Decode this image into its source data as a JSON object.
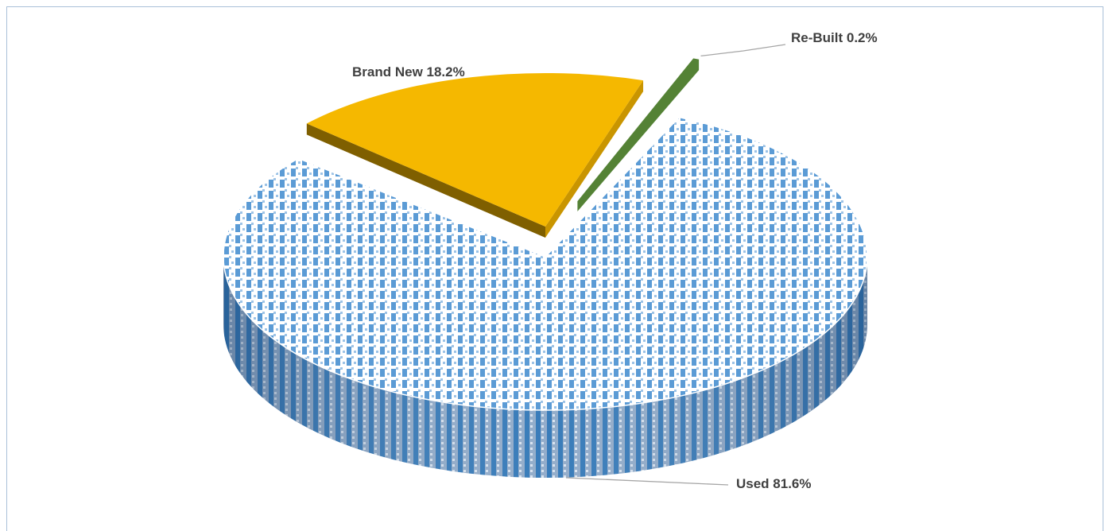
{
  "chart_data": {
    "type": "pie",
    "three_d": true,
    "slices": [
      {
        "label": "Used",
        "value": 81.6,
        "display": "Used 81.6%",
        "color": "#5b9bd5",
        "pattern": "checker"
      },
      {
        "label": "Brand New",
        "value": 18.2,
        "display": "Brand New 18.2%",
        "color": "#f5b800",
        "exploded": true
      },
      {
        "label": "Re-Built",
        "value": 0.2,
        "display": "Re-Built 0.2%",
        "color": "#548235",
        "exploded": true
      }
    ],
    "legend": "none",
    "data_labels": "outside with leader lines"
  }
}
